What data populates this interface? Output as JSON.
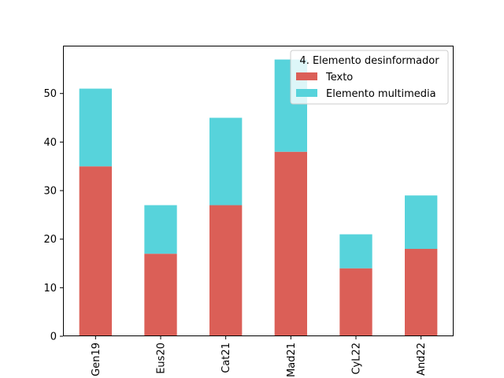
{
  "chart_data": {
    "type": "bar",
    "stacked": true,
    "categories": [
      "Gen19",
      "Eus20",
      "Cat21",
      "Mad21",
      "CyL22",
      "And22"
    ],
    "series": [
      {
        "name": "Texto",
        "values": [
          35,
          17,
          27,
          38,
          14,
          18
        ],
        "color": "#db5f57"
      },
      {
        "name": "Elemento multimedia",
        "values": [
          16,
          10,
          18,
          19,
          7,
          11
        ],
        "color": "#57d3db"
      }
    ],
    "yticks": [
      0,
      10,
      20,
      30,
      40,
      50
    ],
    "ylim": [
      0,
      59.85
    ],
    "grid": false,
    "legend": {
      "title": "4. Elemento desinformador",
      "placement": "upper right"
    },
    "xtick_rotation": 90
  }
}
